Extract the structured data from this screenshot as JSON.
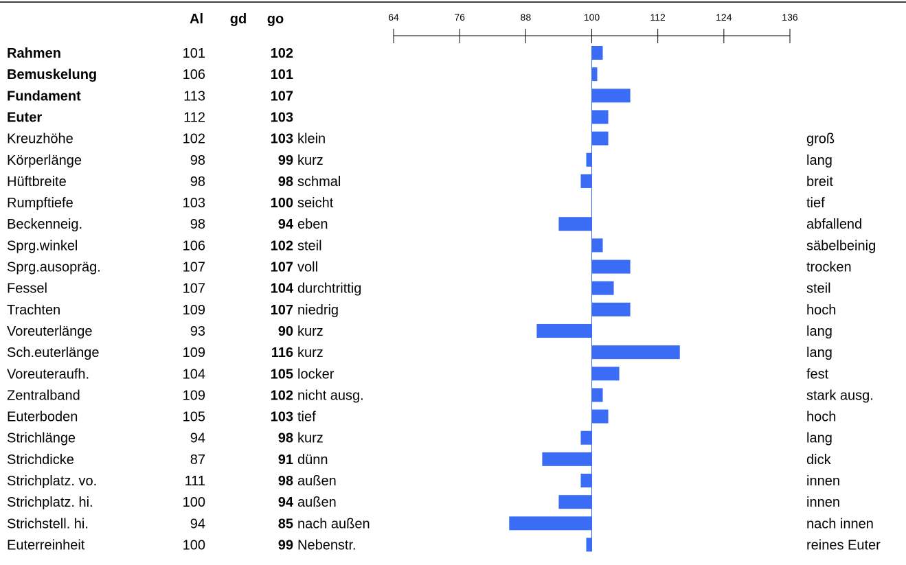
{
  "headers": {
    "label_col": "",
    "al": "Al",
    "gd": "gd",
    "go": "go"
  },
  "chart_data": {
    "type": "bar",
    "orientation": "horizontal",
    "baseline": 100,
    "xlim": [
      64,
      136
    ],
    "ticks": [
      64,
      76,
      88,
      100,
      112,
      124,
      136
    ],
    "bar_color": "#3b6cf5",
    "rows": [
      {
        "label": "Rahmen",
        "al": "101",
        "gd": "",
        "go": "102",
        "value": 102,
        "bold": true,
        "low": "",
        "high": ""
      },
      {
        "label": "Bemuskelung",
        "al": "106",
        "gd": "",
        "go": "101",
        "value": 101,
        "bold": true,
        "low": "",
        "high": ""
      },
      {
        "label": "Fundament",
        "al": "113",
        "gd": "",
        "go": "107",
        "value": 107,
        "bold": true,
        "low": "",
        "high": ""
      },
      {
        "label": "Euter",
        "al": "112",
        "gd": "",
        "go": "103",
        "value": 103,
        "bold": true,
        "low": "",
        "high": ""
      },
      {
        "label": "Kreuzhöhe",
        "al": "102",
        "gd": "",
        "go": "103",
        "value": 103,
        "bold": false,
        "low": "klein",
        "high": "groß"
      },
      {
        "label": "Körperlänge",
        "al": "98",
        "gd": "",
        "go": "99",
        "value": 99,
        "bold": false,
        "low": "kurz",
        "high": "lang"
      },
      {
        "label": "Hüftbreite",
        "al": "98",
        "gd": "",
        "go": "98",
        "value": 98,
        "bold": false,
        "low": "schmal",
        "high": "breit"
      },
      {
        "label": "Rumpftiefe",
        "al": "103",
        "gd": "",
        "go": "100",
        "value": 100,
        "bold": false,
        "low": "seicht",
        "high": "tief"
      },
      {
        "label": "Beckenneig.",
        "al": "98",
        "gd": "",
        "go": "94",
        "value": 94,
        "bold": false,
        "low": "eben",
        "high": "abfallend"
      },
      {
        "label": "Sprg.winkel",
        "al": "106",
        "gd": "",
        "go": "102",
        "value": 102,
        "bold": false,
        "low": "steil",
        "high": "säbelbeinig"
      },
      {
        "label": "Sprg.ausopräg.",
        "al": "107",
        "gd": "",
        "go": "107",
        "value": 107,
        "bold": false,
        "low": "voll",
        "high": "trocken"
      },
      {
        "label": "Fessel",
        "al": "107",
        "gd": "",
        "go": "104",
        "value": 104,
        "bold": false,
        "low": "durchtrittig",
        "high": "steil"
      },
      {
        "label": "Trachten",
        "al": "109",
        "gd": "",
        "go": "107",
        "value": 107,
        "bold": false,
        "low": "niedrig",
        "high": "hoch"
      },
      {
        "label": "Voreuterlänge",
        "al": "93",
        "gd": "",
        "go": "90",
        "value": 90,
        "bold": false,
        "low": "kurz",
        "high": "lang"
      },
      {
        "label": "Sch.euterlänge",
        "al": "109",
        "gd": "",
        "go": "116",
        "value": 116,
        "bold": false,
        "low": "kurz",
        "high": "lang"
      },
      {
        "label": "Voreuteraufh.",
        "al": "104",
        "gd": "",
        "go": "105",
        "value": 105,
        "bold": false,
        "low": "locker",
        "high": "fest"
      },
      {
        "label": "Zentralband",
        "al": "109",
        "gd": "",
        "go": "102",
        "value": 102,
        "bold": false,
        "low": "nicht ausg.",
        "high": "stark ausg."
      },
      {
        "label": "Euterboden",
        "al": "105",
        "gd": "",
        "go": "103",
        "value": 103,
        "bold": false,
        "low": "tief",
        "high": "hoch"
      },
      {
        "label": "Strichlänge",
        "al": "94",
        "gd": "",
        "go": "98",
        "value": 98,
        "bold": false,
        "low": "kurz",
        "high": "lang"
      },
      {
        "label": "Strichdicke",
        "al": "87",
        "gd": "",
        "go": "91",
        "value": 91,
        "bold": false,
        "low": "dünn",
        "high": "dick"
      },
      {
        "label": "Strichplatz. vo.",
        "al": "111",
        "gd": "",
        "go": "98",
        "value": 98,
        "bold": false,
        "low": "außen",
        "high": "innen"
      },
      {
        "label": "Strichplatz. hi.",
        "al": "100",
        "gd": "",
        "go": "94",
        "value": 94,
        "bold": false,
        "low": "außen",
        "high": "innen"
      },
      {
        "label": "Strichstell. hi.",
        "al": "94",
        "gd": "",
        "go": "85",
        "value": 85,
        "bold": false,
        "low": "nach außen",
        "high": "nach innen"
      },
      {
        "label": "Euterreinheit",
        "al": "100",
        "gd": "",
        "go": "99",
        "value": 99,
        "bold": false,
        "low": "Nebenstr.",
        "high": "reines Euter"
      }
    ]
  }
}
